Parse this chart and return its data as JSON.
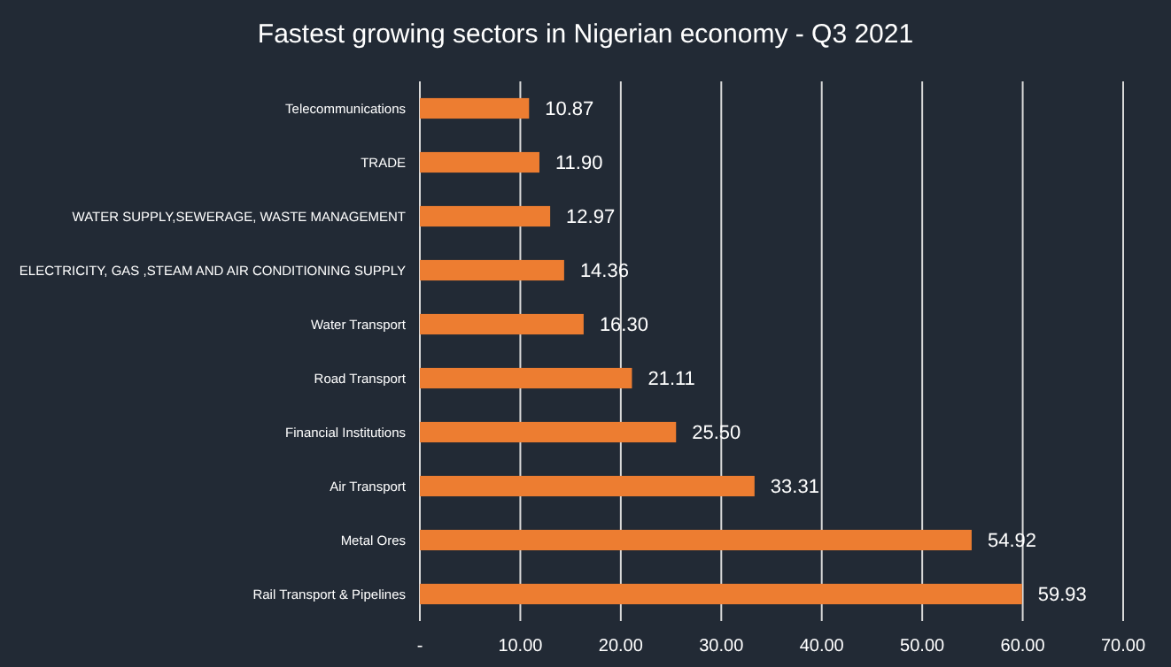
{
  "chart_data": {
    "type": "bar",
    "orientation": "horizontal",
    "title": "Fastest growing sectors in Nigerian economy - Q3 2021",
    "categories": [
      "Telecommunications",
      "TRADE",
      "WATER SUPPLY,SEWERAGE, WASTE MANAGEMENT",
      "ELECTRICITY, GAS ,STEAM AND AIR CONDITIONING SUPPLY",
      "Water Transport",
      "Road Transport",
      "Financial Institutions",
      "Air Transport",
      "Metal Ores",
      "Rail Transport & Pipelines"
    ],
    "values": [
      10.87,
      11.9,
      12.97,
      14.36,
      16.3,
      21.11,
      25.5,
      33.31,
      54.92,
      59.93
    ],
    "value_labels": [
      "10.87",
      "11.90",
      "12.97",
      "14.36",
      "16.30",
      "21.11",
      "25.50",
      "33.31",
      "54.92",
      "59.93"
    ],
    "color": "#ed7d31",
    "xlim": [
      0,
      70
    ],
    "xticks": [
      {
        "value": 0,
        "label": "-"
      },
      {
        "value": 10,
        "label": "10.00"
      },
      {
        "value": 20,
        "label": "20.00"
      },
      {
        "value": 30,
        "label": "30.00"
      },
      {
        "value": 40,
        "label": "40.00"
      },
      {
        "value": 50,
        "label": "50.00"
      },
      {
        "value": 60,
        "label": "60.00"
      },
      {
        "value": 70,
        "label": "70.00"
      }
    ],
    "grid": "x"
  }
}
